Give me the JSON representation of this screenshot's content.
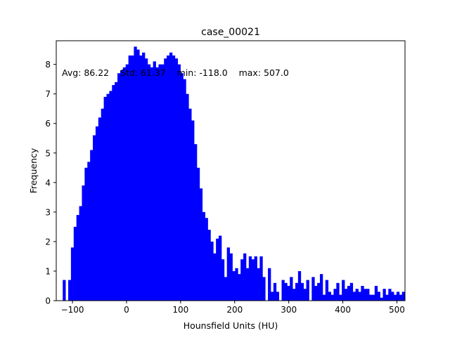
{
  "chart_data": {
    "type": "bar",
    "title": "case_00021",
    "xlabel": "Hounsfield Units (HU)",
    "ylabel": "Frequency",
    "xlim": [
      -130,
      515
    ],
    "ylim": [
      0,
      8.8
    ],
    "xticks": [
      -100,
      0,
      100,
      200,
      300,
      400,
      500
    ],
    "yticks": [
      0,
      1,
      2,
      3,
      4,
      5,
      6,
      7,
      8
    ],
    "annotation": "Avg: 86.22    Std: 61.37    min: -118.0    max: 507.0",
    "bar_color": "#0000ff",
    "bin_width": 5.06,
    "bins_start": -118,
    "values": [
      0.7,
      0,
      0.7,
      1.8,
      2.5,
      2.9,
      3.2,
      3.9,
      4.5,
      4.7,
      5.1,
      5.6,
      5.9,
      6.2,
      6.5,
      6.9,
      7.0,
      7.1,
      7.3,
      7.4,
      7.7,
      7.8,
      7.9,
      8.0,
      8.3,
      8.3,
      8.6,
      8.5,
      8.3,
      8.4,
      8.2,
      8.0,
      7.9,
      8.1,
      7.9,
      8.0,
      8.0,
      8.2,
      8.3,
      8.4,
      8.3,
      8.2,
      8.0,
      7.7,
      7.5,
      7.0,
      6.5,
      6.1,
      5.3,
      4.5,
      3.8,
      3.0,
      2.8,
      2.4,
      2.0,
      1.6,
      2.1,
      2.2,
      1.4,
      0.8,
      1.8,
      1.6,
      1.0,
      1.1,
      0.9,
      1.4,
      1.6,
      1.1,
      1.5,
      1.4,
      1.5,
      1.1,
      1.5,
      0.8,
      0,
      1.1,
      0.3,
      0.6,
      0.3,
      0,
      0.7,
      0.6,
      0.5,
      0.8,
      0.4,
      0.6,
      1.0,
      0.6,
      0.4,
      0.7,
      0,
      0.8,
      0.5,
      0.6,
      0.9,
      0.2,
      0.7,
      0.3,
      0.2,
      0.4,
      0.6,
      0.2,
      0.7,
      0.4,
      0.5,
      0.6,
      0.3,
      0.4,
      0.3,
      0.5,
      0.4,
      0.4,
      0.2,
      0.2,
      0.5,
      0.3,
      0.1,
      0.4,
      0.2,
      0.4,
      0.3,
      0.2,
      0.3,
      0.2,
      0.3
    ]
  }
}
